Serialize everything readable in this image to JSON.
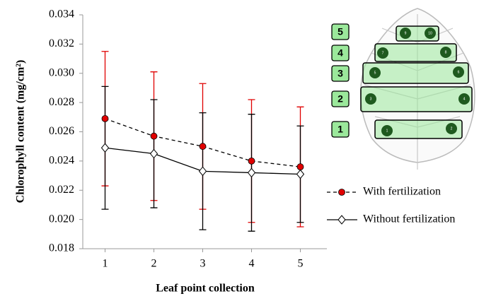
{
  "chart_data": {
    "type": "line",
    "y_label": "Chlorophyll content  (mg/cm²)",
    "x_label": "Leaf point collection",
    "categories": [
      "1",
      "2",
      "3",
      "4",
      "5"
    ],
    "series": [
      {
        "name": "With fertilization",
        "color": "#e00000",
        "line_color": "#000000",
        "line_style": "dashed",
        "marker": "circle",
        "values": [
          0.0269,
          0.0257,
          0.025,
          0.024,
          0.0236
        ],
        "errors": [
          0.0046,
          0.0044,
          0.0043,
          0.0042,
          0.0041
        ]
      },
      {
        "name": "Without fertilization",
        "color": "#000000",
        "line_color": "#000000",
        "line_style": "solid",
        "marker": "diamond",
        "values": [
          0.0249,
          0.0245,
          0.0233,
          0.0232,
          0.0231
        ],
        "errors": [
          0.0042,
          0.0037,
          0.004,
          0.004,
          0.0033
        ]
      }
    ],
    "ylim": [
      0.018,
      0.034
    ],
    "yticks": [
      0.018,
      {
        "value": 0.02,
        "label": "0.020"
      },
      0.022,
      0.024,
      0.026,
      0.028,
      {
        "value": 0.03,
        "label": "0.030"
      },
      0.032,
      0.034
    ],
    "grid": false
  },
  "leaf_diagram": {
    "zones": [
      "1",
      "2",
      "3",
      "4",
      "5"
    ],
    "points": [
      "1",
      "2",
      "3",
      "4",
      "5",
      "6",
      "7",
      "8",
      "9",
      "10"
    ]
  }
}
